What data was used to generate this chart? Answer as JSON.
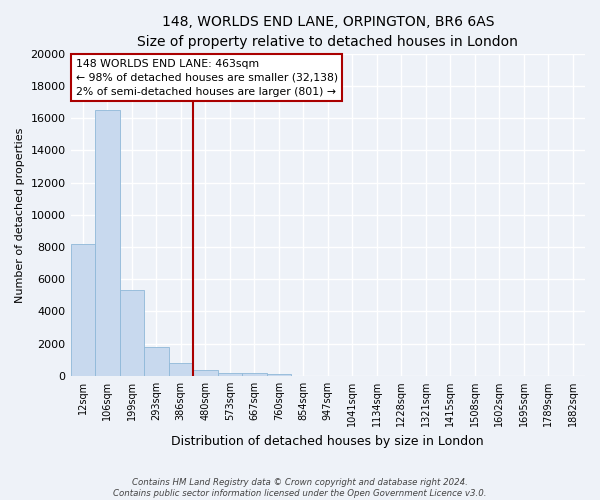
{
  "title": "148, WORLDS END LANE, ORPINGTON, BR6 6AS",
  "subtitle": "Size of property relative to detached houses in London",
  "xlabel": "Distribution of detached houses by size in London",
  "ylabel": "Number of detached properties",
  "bar_labels": [
    "12sqm",
    "106sqm",
    "199sqm",
    "293sqm",
    "386sqm",
    "480sqm",
    "573sqm",
    "667sqm",
    "760sqm",
    "854sqm",
    "947sqm",
    "1041sqm",
    "1134sqm",
    "1228sqm",
    "1321sqm",
    "1415sqm",
    "1508sqm",
    "1602sqm",
    "1695sqm",
    "1789sqm",
    "1882sqm"
  ],
  "bar_heights": [
    8200,
    16500,
    5300,
    1800,
    800,
    350,
    200,
    150,
    100,
    0,
    0,
    0,
    0,
    0,
    0,
    0,
    0,
    0,
    0,
    0,
    0
  ],
  "bar_color": "#c8d9ee",
  "bar_edge_color": "#8fb8d8",
  "vline_position": 4.5,
  "vline_color": "#aa0000",
  "annotation_line1": "148 WORLDS END LANE: 463sqm",
  "annotation_line2": "← 98% of detached houses are smaller (32,138)",
  "annotation_line3": "2% of semi-detached houses are larger (801) →",
  "ylim": [
    0,
    20000
  ],
  "yticks": [
    0,
    2000,
    4000,
    6000,
    8000,
    10000,
    12000,
    14000,
    16000,
    18000,
    20000
  ],
  "footer_line1": "Contains HM Land Registry data © Crown copyright and database right 2024.",
  "footer_line2": "Contains public sector information licensed under the Open Government Licence v3.0.",
  "background_color": "#eef2f8",
  "grid_color": "#ffffff",
  "title_fontsize": 10,
  "subtitle_fontsize": 9,
  "ylabel_fontsize": 8,
  "xlabel_fontsize": 9,
  "ytick_fontsize": 8,
  "xtick_fontsize": 7
}
